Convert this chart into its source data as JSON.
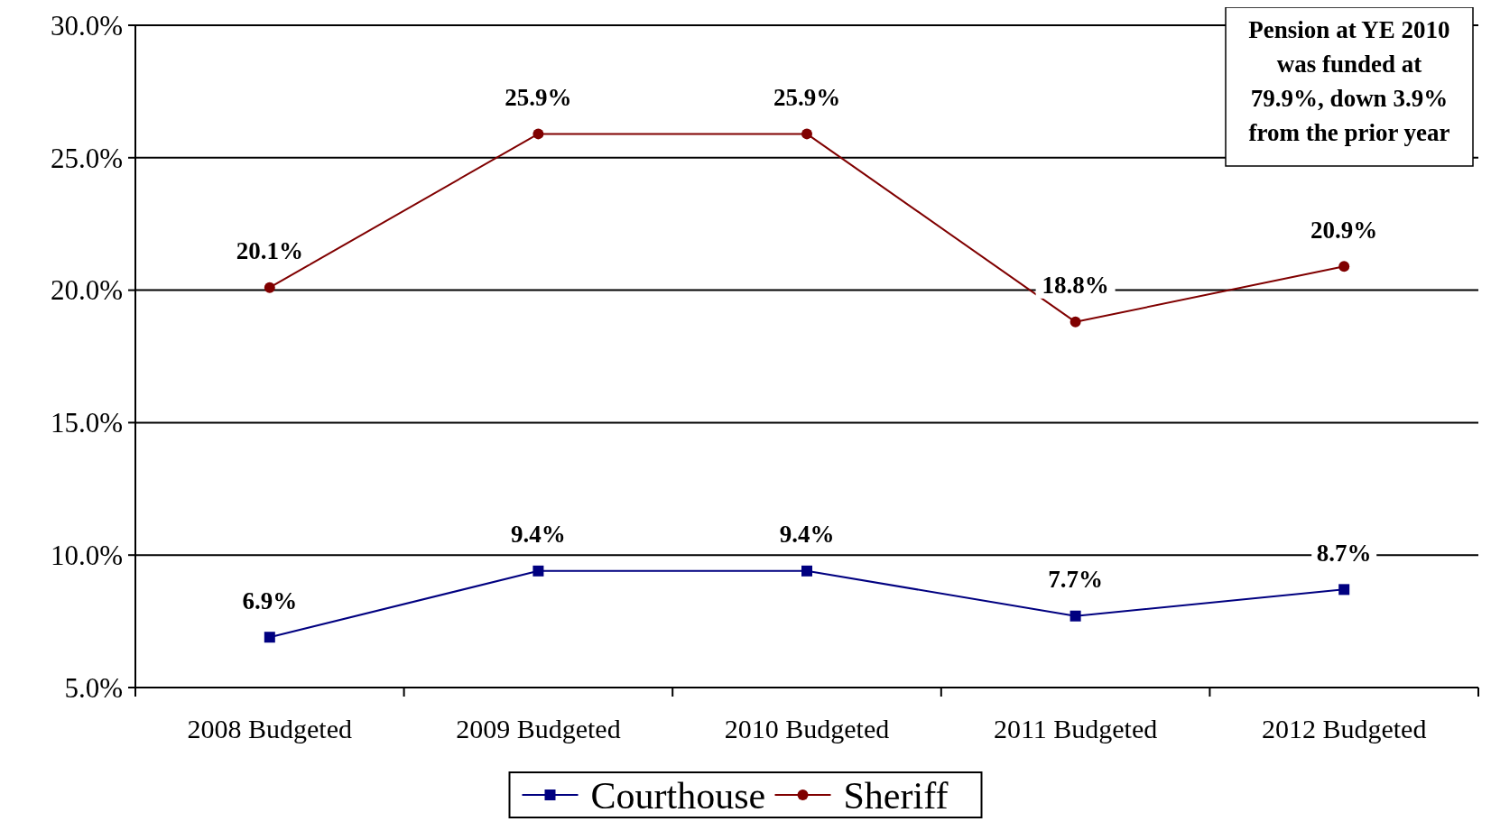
{
  "chart_data": {
    "type": "line",
    "categories": [
      "2008 Budgeted",
      "2009 Budgeted",
      "2010 Budgeted",
      "2011 Budgeted",
      "2012 Budgeted"
    ],
    "series": [
      {
        "name": "Courthouse",
        "color": "#000080",
        "marker": "square",
        "values": [
          6.9,
          9.4,
          9.4,
          7.7,
          8.7
        ],
        "value_labels": [
          "6.9%",
          "9.4%",
          "9.4%",
          "7.7%",
          "8.7%"
        ]
      },
      {
        "name": "Sheriff",
        "color": "#800000",
        "marker": "circle",
        "values": [
          20.1,
          25.9,
          25.9,
          18.8,
          20.9
        ],
        "value_labels": [
          "20.1%",
          "25.9%",
          "25.9%",
          "18.8%",
          "20.9%"
        ]
      }
    ],
    "ylim": [
      5,
      30
    ],
    "yticks": [
      {
        "value": 5,
        "label": "5.0%"
      },
      {
        "value": 10,
        "label": "10.0%"
      },
      {
        "value": 15,
        "label": "15.0%"
      },
      {
        "value": 20,
        "label": "20.0%"
      },
      {
        "value": 25,
        "label": "25.0%"
      },
      {
        "value": 30,
        "label": "30.0%"
      }
    ],
    "grid": "y",
    "legend": "bottom",
    "line_style": "solid",
    "annotations": [
      "Pension at YE 2010 was funded at 79.9%, down 3.9% from the prior year"
    ]
  }
}
